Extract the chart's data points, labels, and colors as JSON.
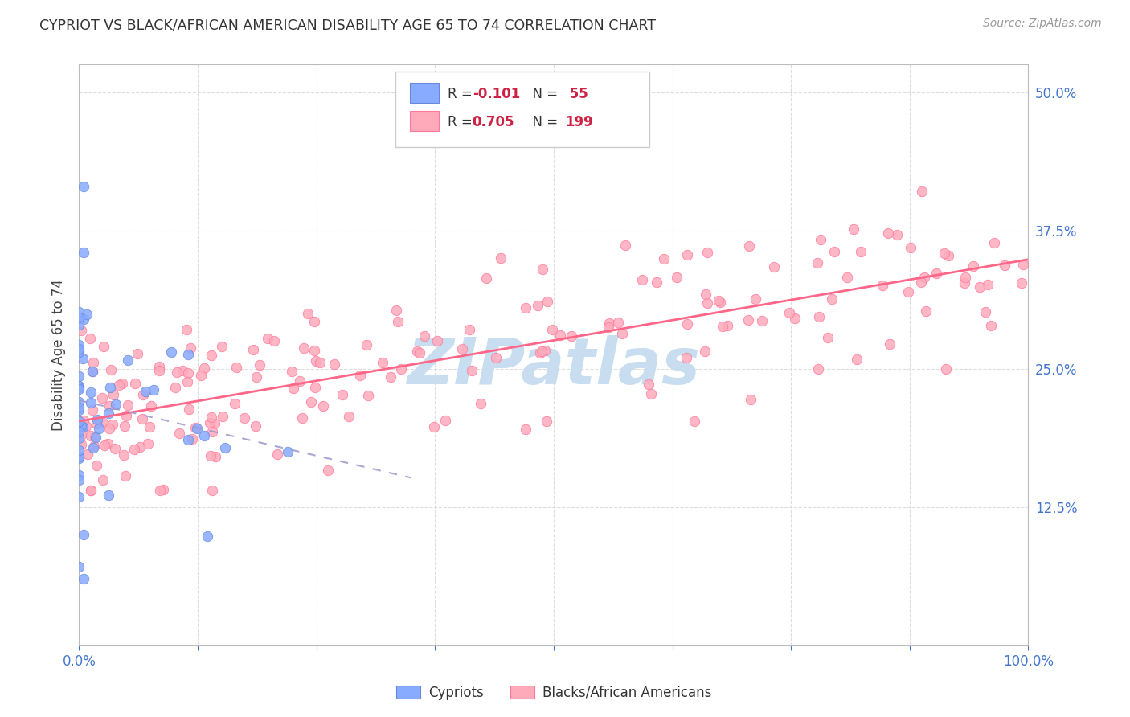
{
  "title": "CYPRIOT VS BLACK/AFRICAN AMERICAN DISABILITY AGE 65 TO 74 CORRELATION CHART",
  "source": "Source: ZipAtlas.com",
  "ylabel": "Disability Age 65 to 74",
  "x_min": 0.0,
  "x_max": 1.0,
  "y_min": 0.0,
  "y_max": 0.525,
  "x_ticks": [
    0.0,
    0.125,
    0.25,
    0.375,
    0.5,
    0.625,
    0.75,
    0.875,
    1.0
  ],
  "x_tick_labels": [
    "0.0%",
    "",
    "",
    "",
    "",
    "",
    "",
    "",
    "100.0%"
  ],
  "y_ticks": [
    0.0,
    0.125,
    0.25,
    0.375,
    0.5
  ],
  "y_tick_labels_right": [
    "",
    "12.5%",
    "25.0%",
    "37.5%",
    "50.0%"
  ],
  "grid_color": "#dddddd",
  "background_color": "#ffffff",
  "cypriot_color": "#88aaff",
  "cypriot_edge": "#6688dd",
  "black_color": "#ffaabb",
  "black_edge": "#ff7799",
  "trend_cypriot_color": "#9999cc",
  "trend_black_color": "#ff6688",
  "watermark_text": "ZIPatlas",
  "watermark_color": "#c8ddf0",
  "tick_label_color": "#4477cc",
  "title_color": "#333333",
  "source_color": "#999999",
  "ylabel_color": "#444444",
  "legend_R1": "-0.101",
  "legend_N1": "55",
  "legend_R2": "0.705",
  "legend_N2": "199",
  "marker_size": 9
}
